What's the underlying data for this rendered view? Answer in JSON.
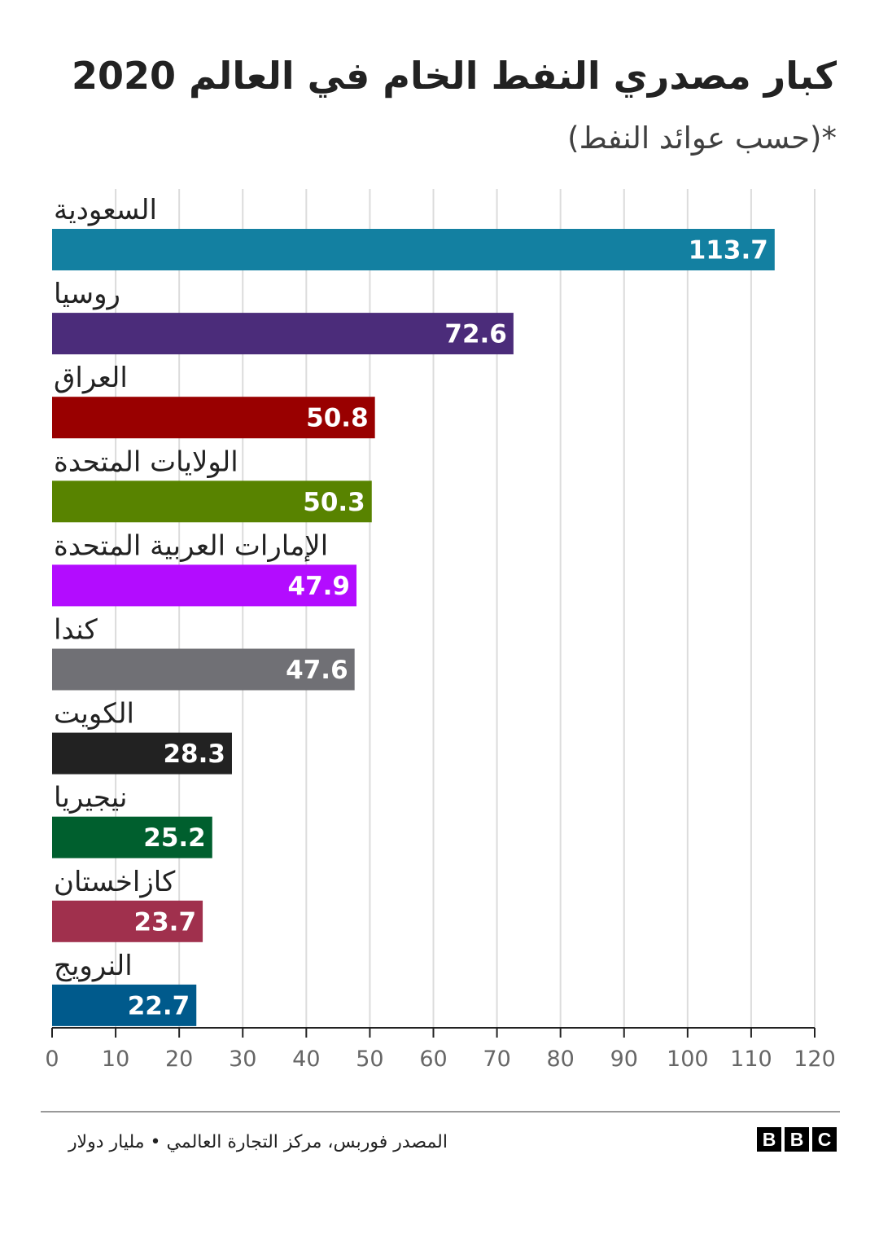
{
  "chart_data": {
    "type": "bar",
    "orientation": "horizontal",
    "title": "كبار مصدري النفط الخام في العالم 2020",
    "subtitle": "*(حسب عوائد النفط)",
    "categories": [
      "السعودية",
      "روسيا",
      "العراق",
      "الولايات المتحدة",
      "الإمارات العربية المتحدة",
      "كندا",
      "الكويت",
      "نيجيريا",
      "كازاخستان",
      "النرويج"
    ],
    "values": [
      113.7,
      72.6,
      50.8,
      50.3,
      47.9,
      47.6,
      28.3,
      25.2,
      23.7,
      22.7
    ],
    "value_labels": [
      "113.7",
      "72.6",
      "50.8",
      "50.3",
      "47.9",
      "47.6",
      "28.3",
      "25.2",
      "23.7",
      "22.7"
    ],
    "colors": [
      "#1380A1",
      "#4B2C7A",
      "#990000",
      "#588300",
      "#B30CFF",
      "#707075",
      "#222222",
      "#005F2E",
      "#A0304D",
      "#005A8C"
    ],
    "xlim": [
      0,
      120
    ],
    "xticks": [
      0,
      10,
      20,
      30,
      40,
      50,
      60,
      70,
      80,
      90,
      100,
      110,
      120
    ],
    "grid": true,
    "xlabel": "",
    "ylabel": ""
  },
  "footer": {
    "source": "المصدر فوربس، مركز التجارة العالمي • مليار دولار",
    "logo_letters": [
      "B",
      "B",
      "C"
    ]
  }
}
